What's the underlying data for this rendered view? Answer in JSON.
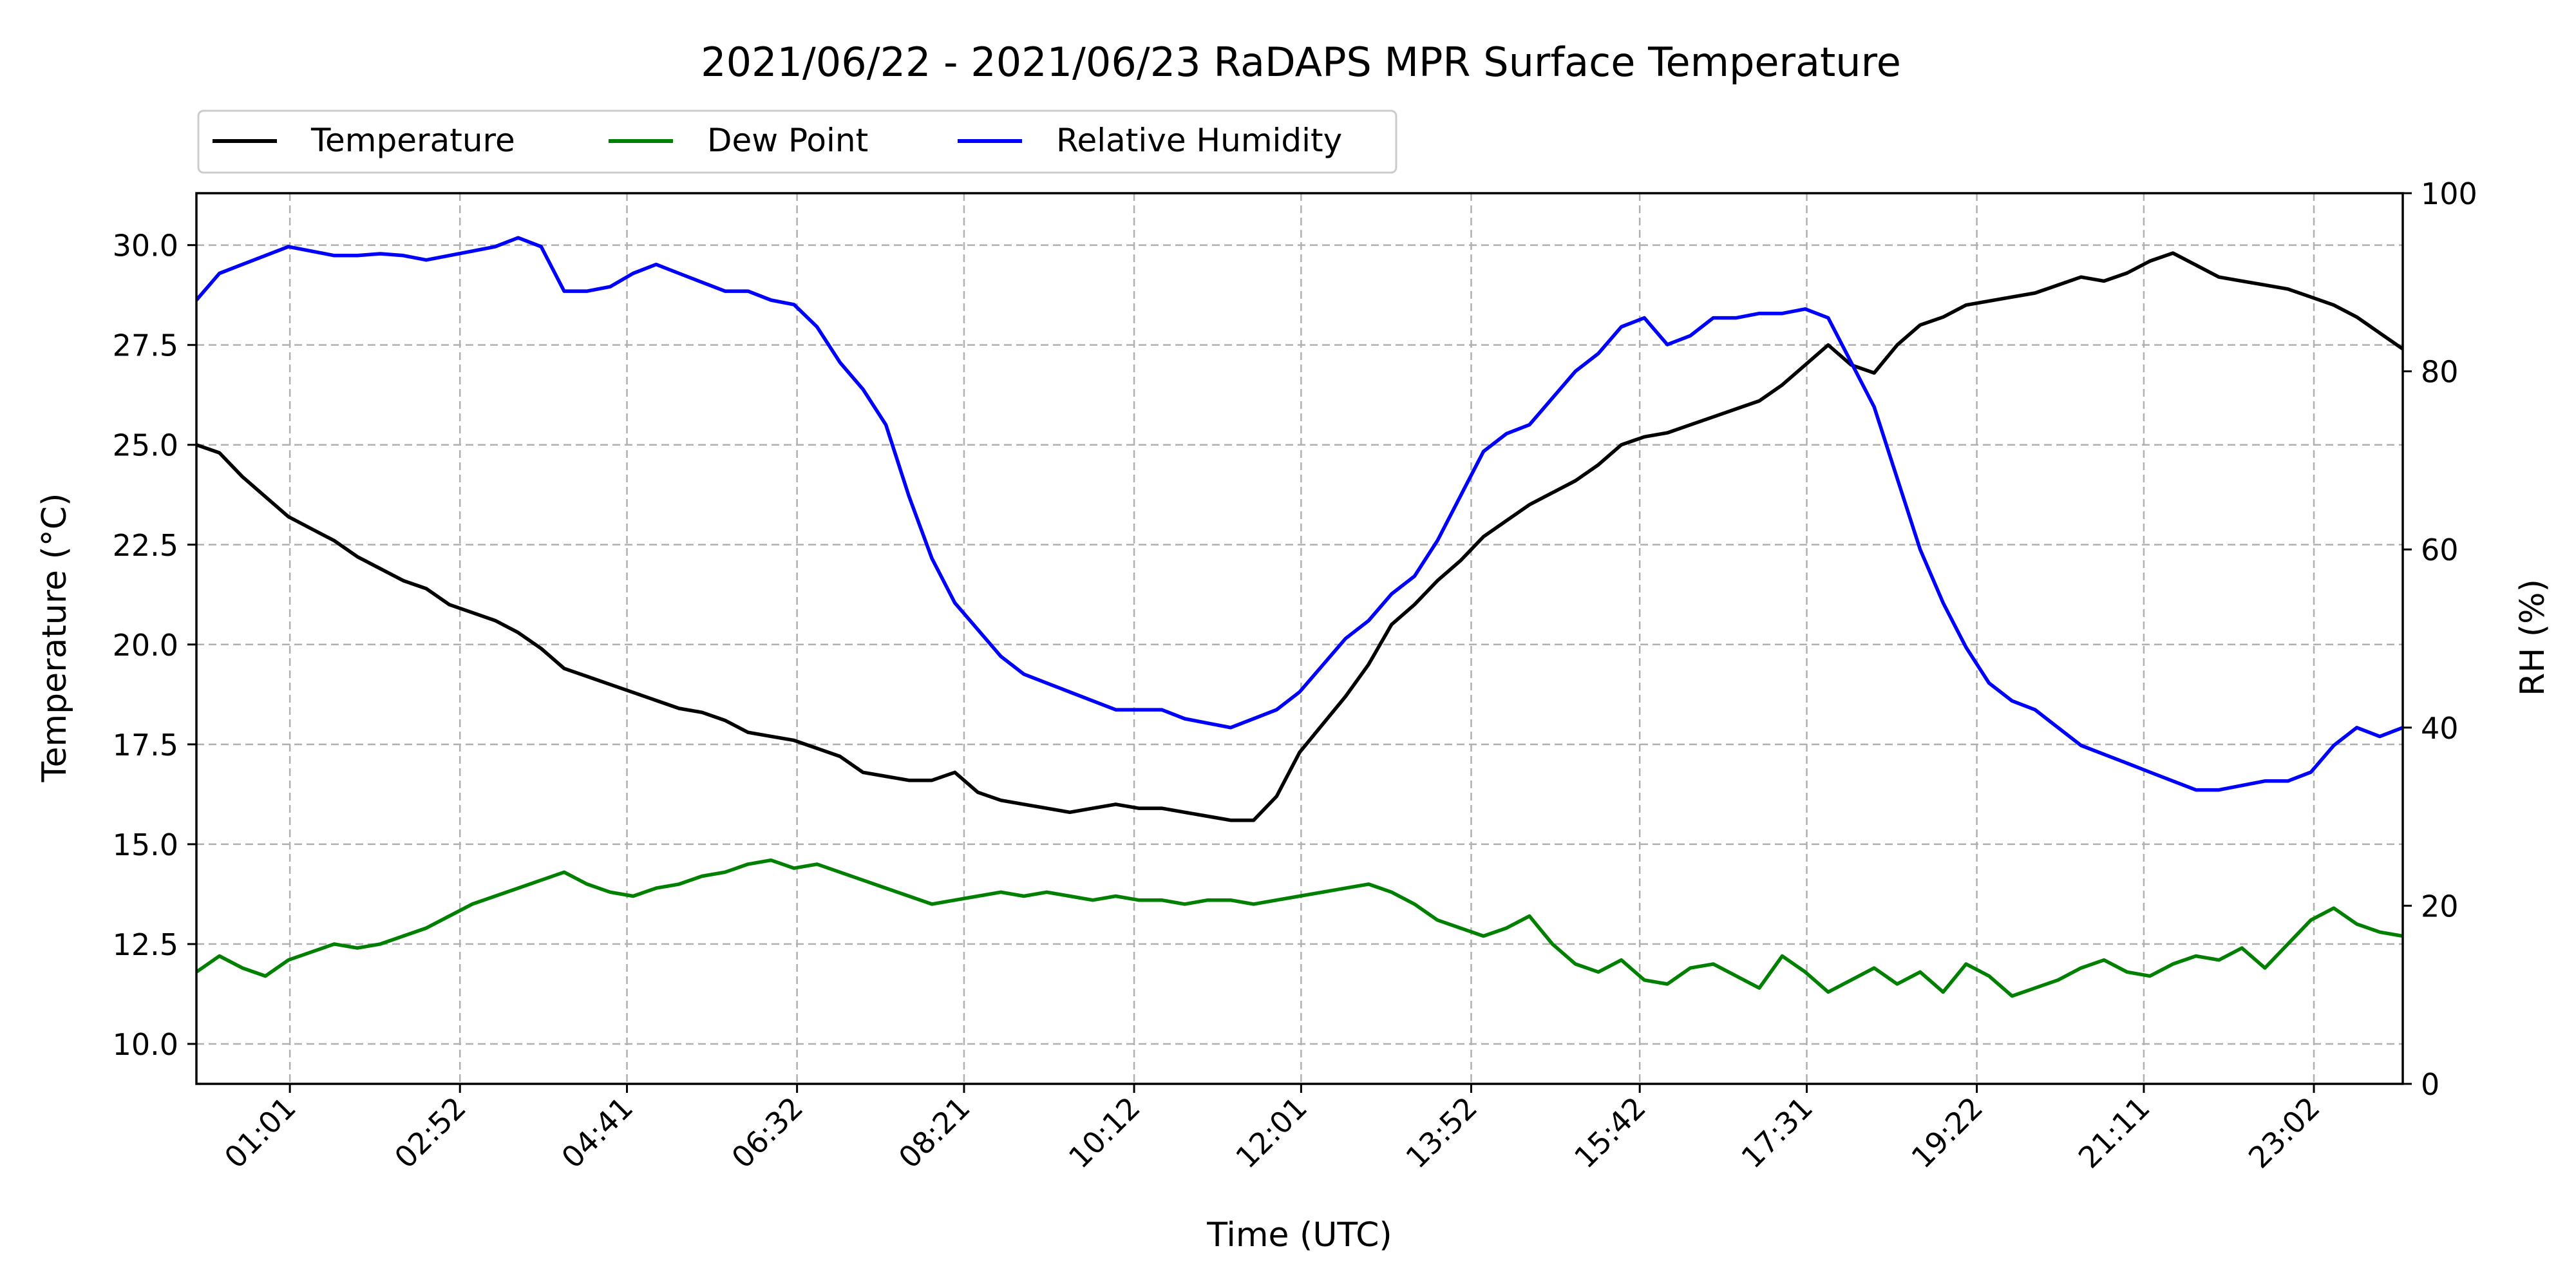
{
  "chart_data": {
    "type": "line",
    "title": "2021/06/22 - 2021/06/23 RaDAPS MPR Surface Temperature",
    "xlabel": "Time (UTC)",
    "ylabel": "Temperature ($^\\circ$C)",
    "ylabel_display": "Temperature (°C)",
    "y2label": "RH (%)",
    "legend": {
      "placement": "above-plot-left",
      "ncols": 3
    },
    "grid": true,
    "x_range_minutes": [
      0,
      1440
    ],
    "ylim": [
      9.0,
      31.3
    ],
    "y2lim": [
      0,
      100
    ],
    "x_ticks": [
      {
        "label": "01:01",
        "minute": 61
      },
      {
        "label": "02:52",
        "minute": 172
      },
      {
        "label": "04:41",
        "minute": 281
      },
      {
        "label": "06:32",
        "minute": 392
      },
      {
        "label": "08:21",
        "minute": 501
      },
      {
        "label": "10:12",
        "minute": 612
      },
      {
        "label": "12:01",
        "minute": 721
      },
      {
        "label": "13:52",
        "minute": 832
      },
      {
        "label": "15:42",
        "minute": 942
      },
      {
        "label": "17:31",
        "minute": 1051
      },
      {
        "label": "19:22",
        "minute": 1162
      },
      {
        "label": "21:11",
        "minute": 1271
      },
      {
        "label": "23:02",
        "minute": 1382
      }
    ],
    "y_ticks": [
      "10.0",
      "12.5",
      "15.0",
      "17.5",
      "20.0",
      "22.5",
      "25.0",
      "27.5",
      "30.0"
    ],
    "y2_ticks": [
      "0",
      "20",
      "40",
      "60",
      "80",
      "100"
    ],
    "series": [
      {
        "name": "Temperature",
        "color": "#000000",
        "axis": "left",
        "x": [
          0,
          15,
          30,
          45,
          60,
          75,
          90,
          105,
          120,
          135,
          150,
          165,
          180,
          195,
          210,
          225,
          240,
          255,
          270,
          285,
          300,
          315,
          330,
          345,
          360,
          375,
          390,
          405,
          420,
          435,
          450,
          465,
          480,
          495,
          510,
          525,
          540,
          555,
          570,
          585,
          600,
          615,
          630,
          645,
          660,
          675,
          690,
          705,
          720,
          735,
          750,
          765,
          780,
          795,
          810,
          825,
          840,
          855,
          870,
          885,
          900,
          915,
          930,
          945,
          960,
          975,
          990,
          1005,
          1020,
          1035,
          1050,
          1065,
          1080,
          1095,
          1110,
          1125,
          1140,
          1155,
          1170,
          1185,
          1200,
          1215,
          1230,
          1245,
          1260,
          1275,
          1290,
          1305,
          1320,
          1335,
          1350,
          1365,
          1380,
          1395,
          1410,
          1425,
          1440
        ],
        "values": [
          25.0,
          24.8,
          24.2,
          23.7,
          23.2,
          22.9,
          22.6,
          22.2,
          21.9,
          21.6,
          21.4,
          21.0,
          20.8,
          20.6,
          20.3,
          19.9,
          19.4,
          19.2,
          19.0,
          18.8,
          18.6,
          18.4,
          18.3,
          18.1,
          17.8,
          17.7,
          17.6,
          17.4,
          17.2,
          16.8,
          16.7,
          16.6,
          16.6,
          16.8,
          16.3,
          16.1,
          16.0,
          15.9,
          15.8,
          15.9,
          16.0,
          15.9,
          15.9,
          15.8,
          15.7,
          15.6,
          15.6,
          16.2,
          17.3,
          18.0,
          18.7,
          19.5,
          20.5,
          21.0,
          21.6,
          22.1,
          22.7,
          23.1,
          23.5,
          23.8,
          24.1,
          24.5,
          25.0,
          25.2,
          25.3,
          25.5,
          25.7,
          25.9,
          26.1,
          26.5,
          27.0,
          27.5,
          27.0,
          26.8,
          27.5,
          28.0,
          28.2,
          28.5,
          28.6,
          28.7,
          28.8,
          29.0,
          29.2,
          29.1,
          29.3,
          29.6,
          29.8,
          29.5,
          29.2,
          29.1,
          29.0,
          28.9,
          28.7,
          28.5,
          28.2,
          27.8,
          27.4
        ]
      },
      {
        "name": "Dew Point",
        "color": "#008000",
        "axis": "left",
        "x": [
          0,
          15,
          30,
          45,
          60,
          75,
          90,
          105,
          120,
          135,
          150,
          165,
          180,
          195,
          210,
          225,
          240,
          255,
          270,
          285,
          300,
          315,
          330,
          345,
          360,
          375,
          390,
          405,
          420,
          435,
          450,
          465,
          480,
          495,
          510,
          525,
          540,
          555,
          570,
          585,
          600,
          615,
          630,
          645,
          660,
          675,
          690,
          705,
          720,
          735,
          750,
          765,
          780,
          795,
          810,
          825,
          840,
          855,
          870,
          885,
          900,
          915,
          930,
          945,
          960,
          975,
          990,
          1005,
          1020,
          1035,
          1050,
          1065,
          1080,
          1095,
          1110,
          1125,
          1140,
          1155,
          1170,
          1185,
          1200,
          1215,
          1230,
          1245,
          1260,
          1275,
          1290,
          1305,
          1320,
          1335,
          1350,
          1365,
          1380,
          1395,
          1410,
          1425,
          1440
        ],
        "values": [
          11.8,
          12.2,
          11.9,
          11.7,
          12.1,
          12.3,
          12.5,
          12.4,
          12.5,
          12.7,
          12.9,
          13.2,
          13.5,
          13.7,
          13.9,
          14.1,
          14.3,
          14.0,
          13.8,
          13.7,
          13.9,
          14.0,
          14.2,
          14.3,
          14.5,
          14.6,
          14.4,
          14.5,
          14.3,
          14.1,
          13.9,
          13.7,
          13.5,
          13.6,
          13.7,
          13.8,
          13.7,
          13.8,
          13.7,
          13.6,
          13.7,
          13.6,
          13.6,
          13.5,
          13.6,
          13.6,
          13.5,
          13.6,
          13.7,
          13.8,
          13.9,
          14.0,
          13.8,
          13.5,
          13.1,
          12.9,
          12.7,
          12.9,
          13.2,
          12.5,
          12.0,
          11.8,
          12.1,
          11.6,
          11.5,
          11.9,
          12.0,
          11.7,
          11.4,
          12.2,
          11.8,
          11.3,
          11.6,
          11.9,
          11.5,
          11.8,
          11.3,
          12.0,
          11.7,
          11.2,
          11.4,
          11.6,
          11.9,
          12.1,
          11.8,
          11.7,
          12.0,
          12.2,
          12.1,
          12.4,
          11.9,
          12.5,
          13.1,
          13.4,
          13.0,
          12.8,
          12.7
        ]
      },
      {
        "name": "Relative Humidity",
        "color": "#0000ff",
        "axis": "right",
        "x": [
          0,
          15,
          30,
          45,
          60,
          75,
          90,
          105,
          120,
          135,
          150,
          165,
          180,
          195,
          210,
          225,
          240,
          255,
          270,
          285,
          300,
          315,
          330,
          345,
          360,
          375,
          390,
          405,
          420,
          435,
          450,
          465,
          480,
          495,
          510,
          525,
          540,
          555,
          570,
          585,
          600,
          615,
          630,
          645,
          660,
          675,
          690,
          705,
          720,
          735,
          750,
          765,
          780,
          795,
          810,
          825,
          840,
          855,
          870,
          885,
          900,
          915,
          930,
          945,
          960,
          975,
          990,
          1005,
          1020,
          1035,
          1050,
          1065,
          1080,
          1095,
          1110,
          1125,
          1140,
          1155,
          1170,
          1185,
          1200,
          1215,
          1230,
          1245,
          1260,
          1275,
          1290,
          1305,
          1320,
          1335,
          1350,
          1365,
          1380,
          1395,
          1410,
          1425,
          1440
        ],
        "values": [
          88,
          91,
          92,
          93,
          94,
          93.5,
          93,
          93,
          93.2,
          93,
          92.5,
          93,
          93.5,
          94,
          95,
          94,
          89,
          89,
          89.5,
          91,
          92,
          91,
          90,
          89,
          89,
          88,
          87.5,
          85,
          81,
          78,
          74,
          66,
          59,
          54,
          51,
          48,
          46,
          45,
          44,
          43,
          42,
          42,
          42,
          41,
          40.5,
          40,
          41,
          42,
          44,
          47,
          50,
          52,
          55,
          57,
          61,
          66,
          71,
          73,
          74,
          77,
          80,
          82,
          85,
          86,
          83,
          84,
          86,
          86,
          86.5,
          86.5,
          87,
          86,
          81,
          76,
          68,
          60,
          54,
          49,
          45,
          43,
          42,
          40,
          38,
          37,
          36,
          35,
          34,
          33,
          33,
          33.5,
          34,
          34,
          35,
          38,
          40,
          39,
          40
        ]
      }
    ]
  }
}
